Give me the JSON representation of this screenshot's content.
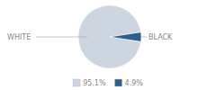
{
  "chart_data": {
    "type": "pie",
    "categories": [
      "WHITE",
      "BLACK"
    ],
    "values": [
      95.1,
      4.9
    ],
    "value_labels": [
      "95.1%",
      "4.9%"
    ],
    "colors": [
      "#cdd5e0",
      "#2e5f8a"
    ],
    "legend": "bottom"
  }
}
